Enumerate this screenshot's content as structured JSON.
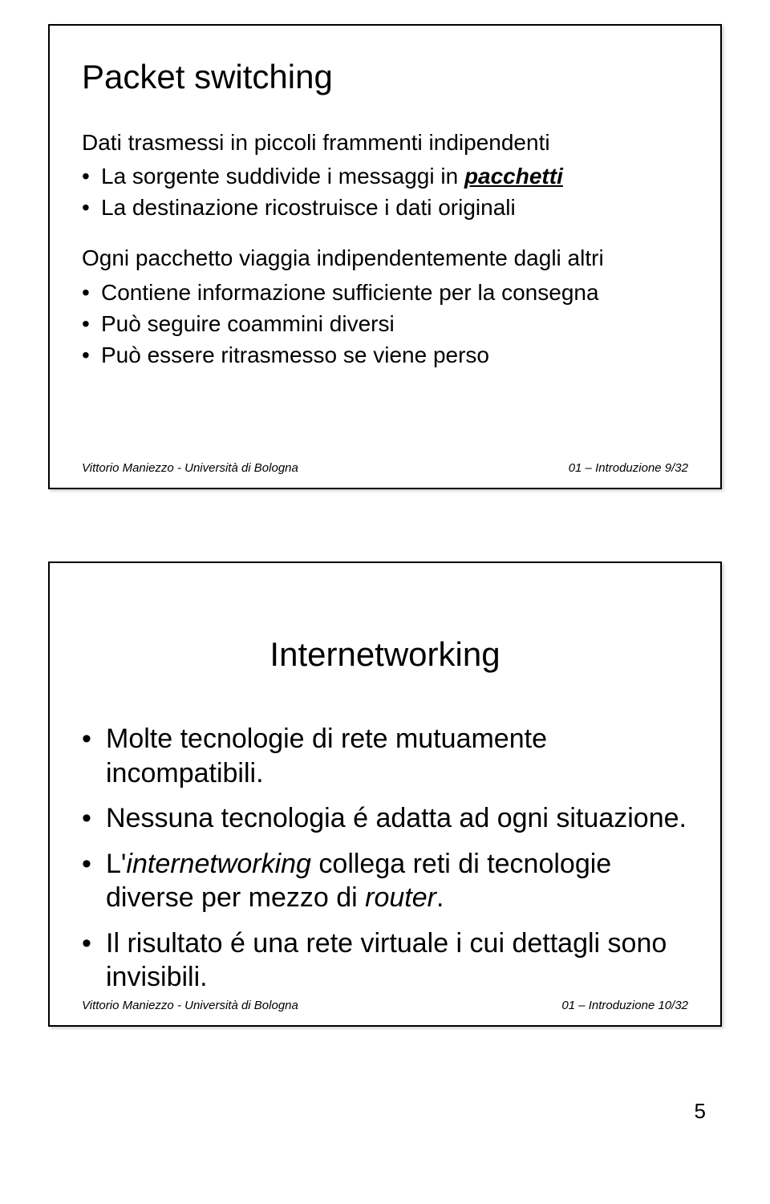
{
  "slide1": {
    "title": "Packet switching",
    "para1": "Dati trasmessi in piccoli frammenti indipendenti",
    "bulletA1_pre": "La sorgente suddivide i messaggi in ",
    "bulletA1_em": "pacchetti",
    "bulletA2": "La destinazione ricostruisce i dati originali",
    "para2": "Ogni pacchetto viaggia indipendentemente dagli altri",
    "bulletB1": "Contiene informazione sufficiente per la consegna",
    "bulletB2": "Può seguire coammini diversi",
    "bulletB3": "Può essere ritrasmesso se viene perso",
    "footer_left": "Vittorio Maniezzo - Università di Bologna",
    "footer_right": "01 – Introduzione  9/32"
  },
  "slide2": {
    "title": "Internetworking",
    "bullet1": "Molte tecnologie di rete mutuamente incompatibili.",
    "bullet2": "Nessuna tecnologia é adatta ad ogni situazione.",
    "bullet3_pre": "L'",
    "bullet3_em1": "internetworking",
    "bullet3_mid": " collega reti di tecnologie diverse per mezzo di ",
    "bullet3_em2": "router",
    "bullet3_post": ".",
    "bullet4": "Il risultato é una rete virtuale i cui dettagli sono invisibili.",
    "footer_left": "Vittorio Maniezzo - Università di Bologna",
    "footer_right": "01 – Introduzione  10/32"
  },
  "page_number": "5"
}
